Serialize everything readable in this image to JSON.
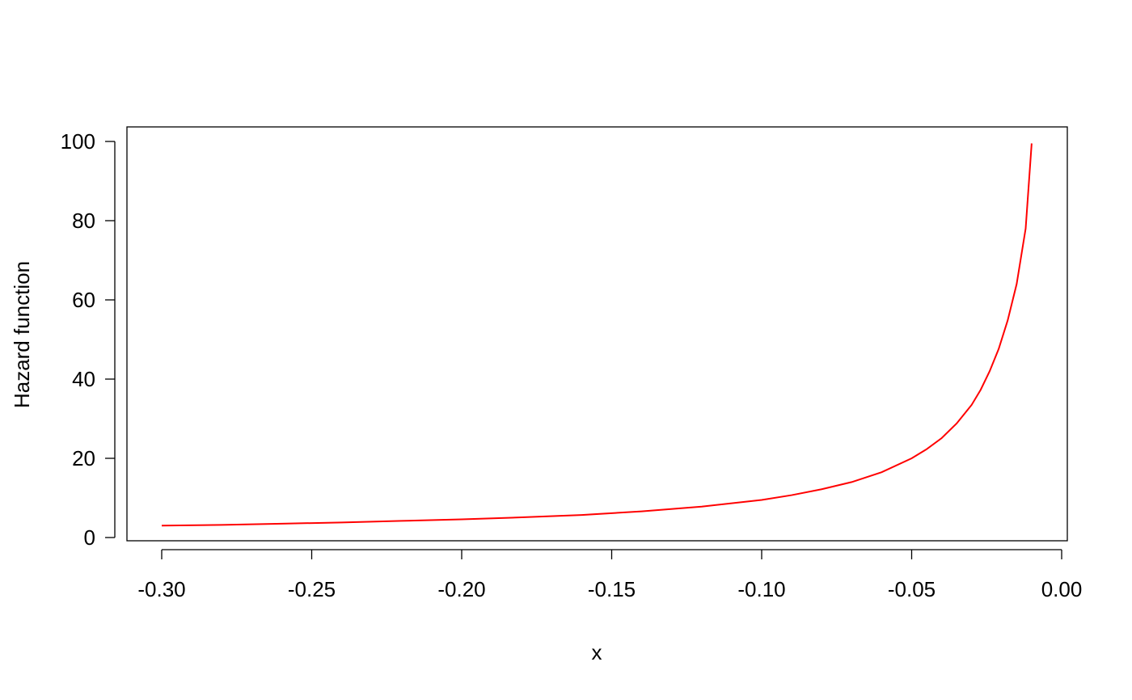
{
  "chart_data": {
    "type": "line",
    "title": "",
    "xlabel": "x",
    "ylabel": "Hazard function",
    "xlim": [
      -0.3,
      0.0
    ],
    "ylim": [
      0,
      100
    ],
    "x_ticks": [
      -0.3,
      -0.25,
      -0.2,
      -0.15,
      -0.1,
      -0.05,
      0.0
    ],
    "x_tick_labels": [
      "-0.30",
      "-0.25",
      "-0.20",
      "-0.15",
      "-0.10",
      "-0.05",
      "0.00"
    ],
    "y_ticks": [
      0,
      20,
      40,
      60,
      80,
      100
    ],
    "y_tick_labels": [
      "0",
      "20",
      "40",
      "60",
      "80",
      "100"
    ],
    "grid": false,
    "legend": "none",
    "series": [
      {
        "color": "#ff0000",
        "x": [
          -0.3,
          -0.28,
          -0.26,
          -0.24,
          -0.22,
          -0.2,
          -0.18,
          -0.16,
          -0.14,
          -0.12,
          -0.1,
          -0.09,
          -0.08,
          -0.07,
          -0.06,
          -0.05,
          -0.045,
          -0.04,
          -0.035,
          -0.03,
          -0.027,
          -0.024,
          -0.021,
          -0.018,
          -0.015,
          -0.012,
          -0.01
        ],
        "y": [
          3.0,
          3.2,
          3.5,
          3.8,
          4.2,
          4.6,
          5.1,
          5.7,
          6.6,
          7.8,
          9.5,
          10.7,
          12.2,
          14.0,
          16.5,
          20.0,
          22.3,
          25.1,
          28.8,
          33.5,
          37.3,
          42.0,
          47.6,
          54.8,
          64.0,
          78.0,
          99.5
        ]
      }
    ]
  }
}
